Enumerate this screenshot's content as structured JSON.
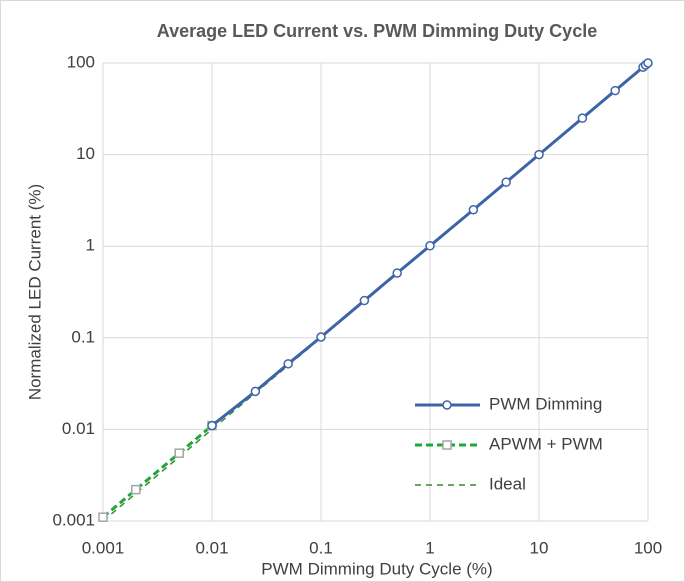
{
  "chart_data": {
    "type": "line",
    "title": "Average LED Current vs. PWM Dimming Duty Cycle",
    "x_label": "PWM Dimming Duty Cycle (%)",
    "y_label": "Normalized LED Current (%)",
    "xlog": true,
    "ylog": true,
    "grid": true,
    "legend": "lower right",
    "xlim": [
      0.001,
      100
    ],
    "ylim": [
      0.001,
      100
    ],
    "xticks": [
      0.001,
      0.01,
      0.1,
      1,
      10,
      100
    ],
    "yticks": [
      0.001,
      0.01,
      0.1,
      1,
      10,
      100
    ],
    "series": [
      {
        "name": "PWM Dimming",
        "color": "#3c64a8",
        "style": "solid",
        "marker": "circle",
        "x": [
          0.01,
          0.025,
          0.05,
          0.1,
          0.25,
          0.5,
          1,
          2.5,
          5,
          10,
          25,
          50,
          90,
          95,
          100
        ],
        "values": [
          0.011,
          0.026,
          0.052,
          0.102,
          0.255,
          0.51,
          1.01,
          2.5,
          5,
          10,
          25,
          50,
          90,
          95,
          100
        ]
      },
      {
        "name": "APWM + PWM",
        "color": "#1fa83a",
        "style": "dashed",
        "marker": "square",
        "x": [
          0.001,
          0.002,
          0.005,
          0.01
        ],
        "values": [
          0.0011,
          0.0022,
          0.0055,
          0.011
        ]
      },
      {
        "name": "Ideal",
        "color": "#3a8a2e",
        "style": "thin-dashed",
        "marker": "none",
        "x": [
          0.001,
          100
        ],
        "values": [
          0.001,
          100
        ]
      }
    ]
  }
}
